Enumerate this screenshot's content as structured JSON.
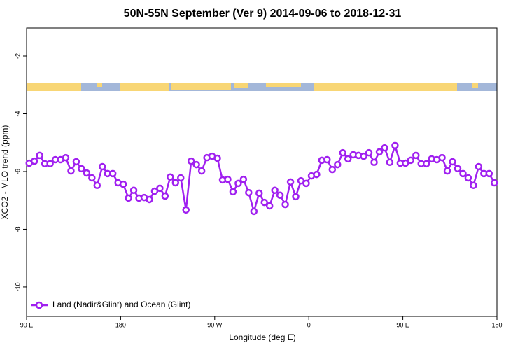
{
  "chart_data": {
    "type": "line",
    "title": "50N-55N September (Ver 9)   2014-09-06 to 2018-12-31",
    "x_label": "Longitude (deg E)",
    "y_label": "XCO2 - MLO trend (ppm)",
    "xlim": [
      90,
      540
    ],
    "ylim": [
      -11.02,
      -1.03
    ],
    "xticks": [
      {
        "value": 90,
        "label": "90 E"
      },
      {
        "value": 180,
        "label": "180"
      },
      {
        "value": 270,
        "label": "90 W"
      },
      {
        "value": 360,
        "label": "0"
      },
      {
        "value": 450,
        "label": "90 E"
      },
      {
        "value": 540,
        "label": "180"
      }
    ],
    "yticks": [
      -2,
      -4,
      -6,
      -8,
      -10
    ],
    "legend": "bottom-left",
    "x": [
      92.5,
      97.5,
      102.5,
      107.5,
      112.5,
      117.5,
      122.5,
      127.5,
      132.5,
      137.5,
      142.5,
      147.5,
      152.5,
      157.5,
      162.5,
      167.5,
      172.5,
      177.5,
      182.5,
      187.5,
      192.5,
      197.5,
      202.5,
      207.5,
      212.5,
      217.5,
      222.5,
      227.5,
      232.5,
      237.5,
      242.5,
      247.5,
      252.5,
      257.5,
      262.5,
      267.5,
      272.5,
      277.5,
      282.5,
      287.5,
      292.5,
      297.5,
      302.5,
      307.5,
      312.5,
      317.5,
      322.5,
      327.5,
      332.5,
      337.5,
      342.5,
      347.5,
      352.5,
      357.5,
      362.5,
      367.5,
      372.5,
      377.5,
      382.5,
      387.5,
      392.5,
      397.5,
      402.5,
      407.5,
      412.5,
      417.5,
      422.5,
      427.5,
      432.5,
      437.5,
      442.5,
      447.5,
      452.5,
      457.5,
      462.5,
      467.5,
      472.5,
      477.5,
      482.5,
      487.5,
      492.5,
      497.5,
      502.5,
      507.5,
      512.5,
      517.5,
      522.5,
      527.5,
      532.5,
      537.5
    ],
    "series": [
      {
        "name": "Land (Nadir&Glint) and Ocean (Glint)",
        "color": "#a020f0",
        "values": [
          -5.71,
          -5.64,
          -5.44,
          -5.73,
          -5.73,
          -5.59,
          -5.59,
          -5.52,
          -5.98,
          -5.66,
          -5.9,
          -6.05,
          -6.22,
          -6.48,
          -5.83,
          -6.07,
          -6.07,
          -6.39,
          -6.44,
          -6.92,
          -6.65,
          -6.92,
          -6.9,
          -6.97,
          -6.68,
          -6.58,
          -6.85,
          -6.19,
          -6.39,
          -6.22,
          -7.33,
          -5.64,
          -5.76,
          -5.98,
          -5.52,
          -5.47,
          -5.54,
          -6.29,
          -6.27,
          -6.7,
          -6.41,
          -6.27,
          -6.73,
          -7.38,
          -6.75,
          -7.07,
          -7.19,
          -6.65,
          -6.82,
          -7.14,
          -6.36,
          -6.87,
          -6.32,
          -6.41,
          -6.15,
          -6.1,
          -5.61,
          -5.59,
          -5.93,
          -5.76,
          -5.35,
          -5.56,
          -5.42,
          -5.44,
          -5.47,
          -5.35,
          -5.68,
          -5.32,
          -5.18,
          -5.68,
          -5.1,
          -5.71,
          -5.71,
          -5.61,
          -5.44,
          -5.73,
          -5.73,
          -5.56,
          -5.59,
          -5.52,
          -5.98,
          -5.66,
          -5.9,
          -6.07,
          -6.22,
          -6.48,
          -5.83,
          -6.07,
          -6.07,
          -6.39
        ]
      }
    ]
  }
}
